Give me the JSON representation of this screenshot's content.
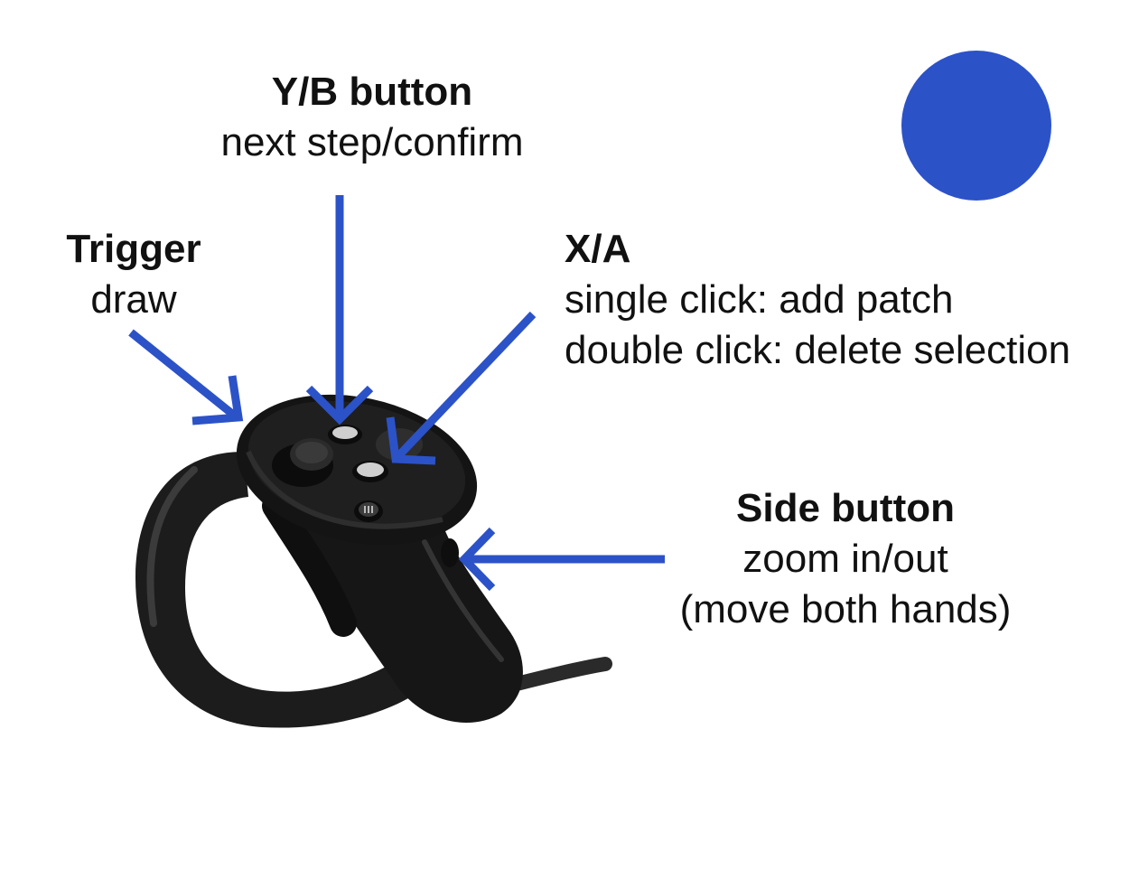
{
  "colors": {
    "accent": "#2c52c8",
    "controller_body": "#1a1a1a",
    "controller_highlight": "#3a3a3a",
    "text": "#111111"
  },
  "labels": {
    "yb": {
      "title": "Y/B button",
      "desc": "next step/confirm"
    },
    "trigger": {
      "title": "Trigger",
      "desc": "draw"
    },
    "xa": {
      "title": "X/A",
      "line1": "single click: add patch",
      "line2": "double click: delete selection"
    },
    "side": {
      "title": "Side button",
      "line1": "zoom in/out",
      "line2": "(move both hands)"
    }
  },
  "icons": {
    "controller": "vr-controller-icon",
    "status_dot": "status-dot-icon"
  }
}
